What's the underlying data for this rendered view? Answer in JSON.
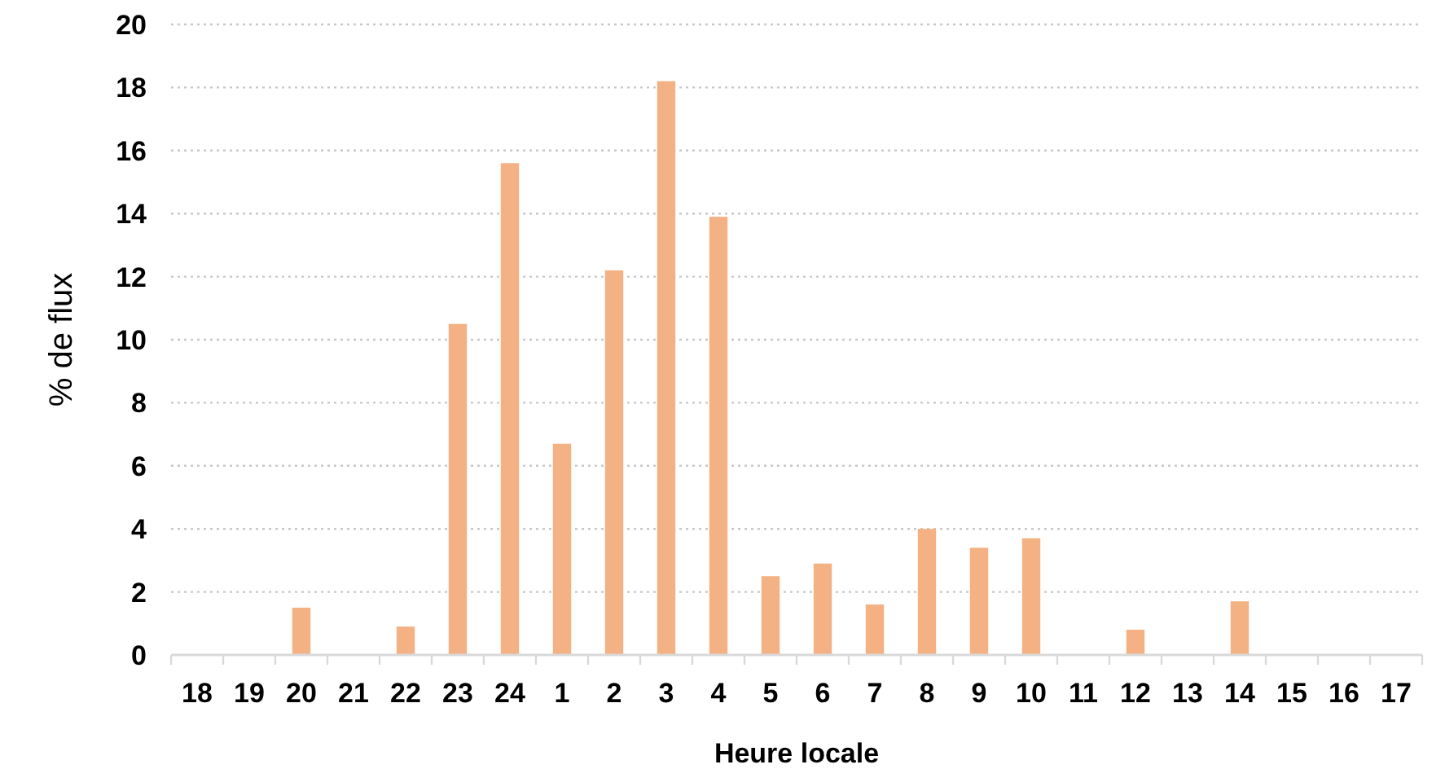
{
  "chart_data": {
    "type": "bar",
    "xlabel": "Heure locale",
    "ylabel": "% de flux",
    "categories": [
      "18",
      "19",
      "20",
      "21",
      "22",
      "23",
      "24",
      "1",
      "2",
      "3",
      "4",
      "5",
      "6",
      "7",
      "8",
      "9",
      "10",
      "11",
      "12",
      "13",
      "14",
      "15",
      "16",
      "17"
    ],
    "values": [
      0,
      0,
      1.5,
      0,
      0.9,
      10.5,
      15.6,
      6.7,
      12.2,
      18.2,
      13.9,
      2.5,
      2.9,
      1.6,
      4.0,
      3.4,
      3.7,
      0,
      0.8,
      0,
      1.7,
      0,
      0,
      0
    ],
    "color": "#f4b183",
    "ylim": [
      0,
      20
    ],
    "yticks": [
      0,
      2,
      4,
      6,
      8,
      10,
      12,
      14,
      16,
      18,
      20
    ],
    "grid": "y"
  }
}
